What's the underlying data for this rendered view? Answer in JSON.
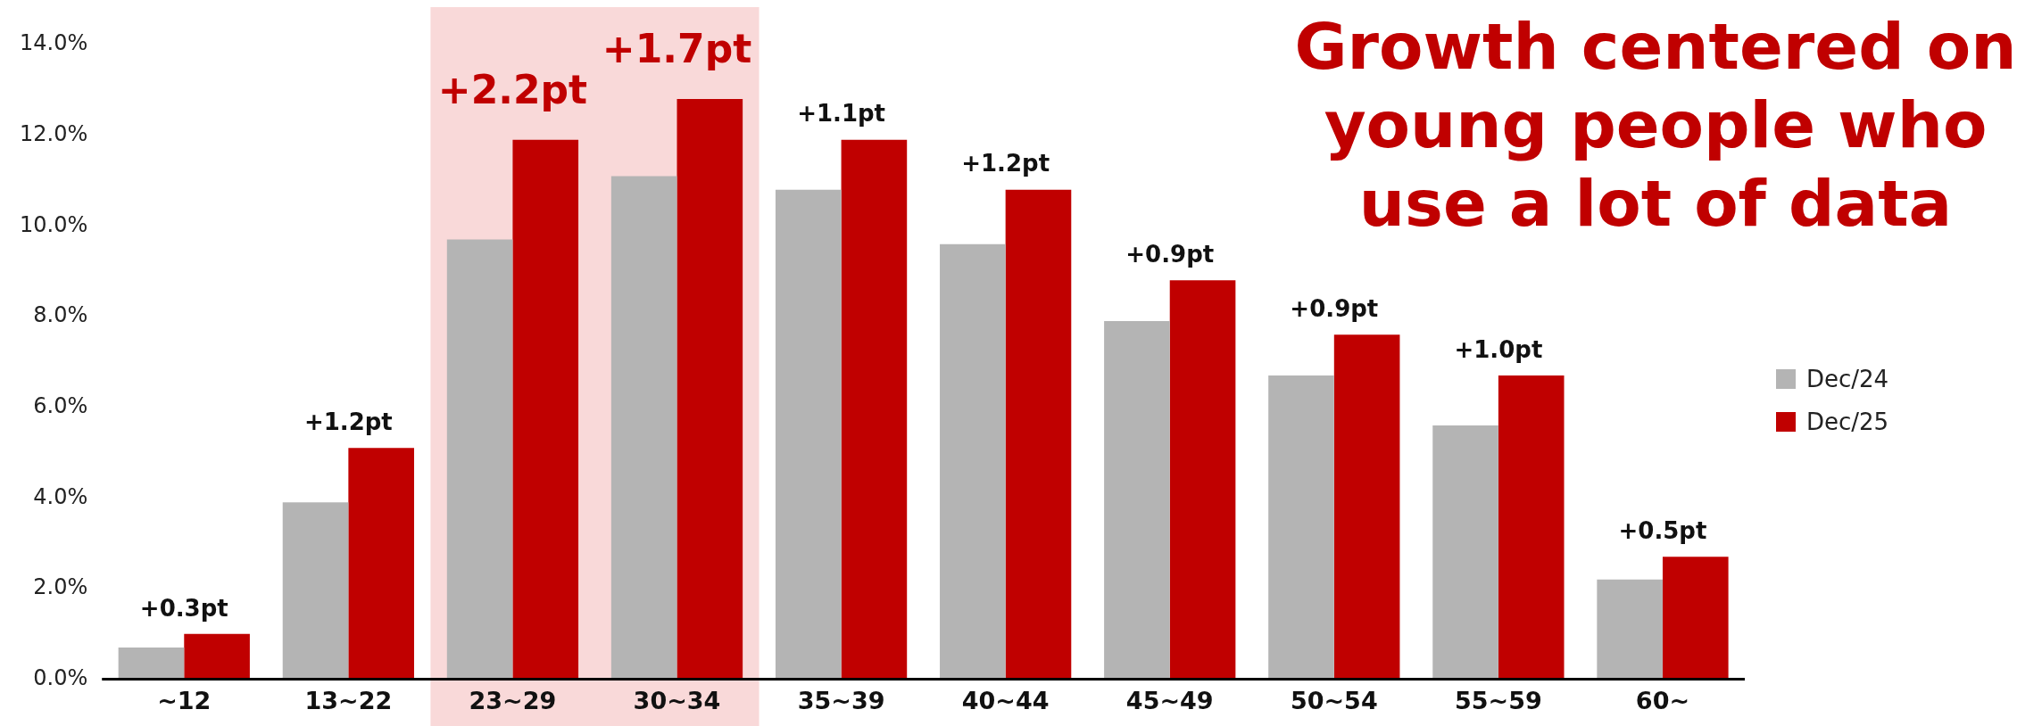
{
  "chart_data": {
    "type": "bar",
    "title": "Growth centered on young people who use a lot of data",
    "categories": [
      "~12",
      "13~22",
      "23~29",
      "30~34",
      "35~39",
      "40~44",
      "45~49",
      "50~54",
      "55~59",
      "60~"
    ],
    "series": [
      {
        "name": "Dec/24",
        "color": "#b4b4b4",
        "values": [
          0.7,
          3.9,
          9.7,
          11.1,
          10.8,
          9.6,
          7.9,
          6.7,
          5.6,
          2.2
        ]
      },
      {
        "name": "Dec/25",
        "color": "#c00000",
        "values": [
          1.0,
          5.1,
          11.9,
          12.8,
          11.9,
          10.8,
          8.8,
          7.6,
          6.7,
          2.7
        ]
      }
    ],
    "ylim": [
      0,
      14
    ],
    "yticks": [
      {
        "value": 0,
        "label": "0.0%"
      },
      {
        "value": 2,
        "label": "2.0%"
      },
      {
        "value": 4,
        "label": "4.0%"
      },
      {
        "value": 6,
        "label": "6.0%"
      },
      {
        "value": 8,
        "label": "8.0%"
      },
      {
        "value": 10,
        "label": "10.0%"
      },
      {
        "value": 12,
        "label": "12.0%"
      },
      {
        "value": 14,
        "label": "14.0%"
      }
    ],
    "bands": [
      {
        "axis": "x",
        "from": "23~29",
        "to": "30~34",
        "color": "#f9d9d9"
      }
    ],
    "annotations": [
      {
        "text": "+0.3pt",
        "x": "~12",
        "y": 1.0
      },
      {
        "text": "+1.2pt",
        "x": "13~22",
        "y": 5.1
      },
      {
        "text": "+2.2pt",
        "x": "23~29",
        "y": 11.9
      },
      {
        "text": "+1.7pt",
        "x": "30~34",
        "y": 12.8
      },
      {
        "text": "+1.1pt",
        "x": "35~39",
        "y": 11.9
      },
      {
        "text": "+1.2pt",
        "x": "40~44",
        "y": 10.8
      },
      {
        "text": "+0.9pt",
        "x": "45~49",
        "y": 8.8
      },
      {
        "text": "+0.9pt",
        "x": "50~54",
        "y": 7.6
      },
      {
        "text": "+1.0pt",
        "x": "55~59",
        "y": 6.7
      },
      {
        "text": "+0.5pt",
        "x": "60~",
        "y": 2.7
      }
    ],
    "grid": false,
    "legend": "right"
  }
}
